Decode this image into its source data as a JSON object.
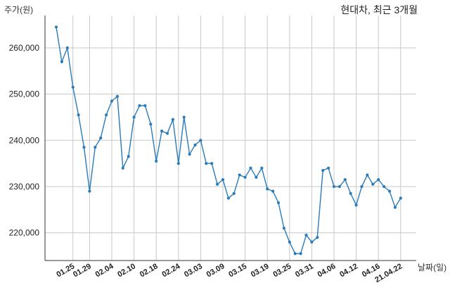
{
  "chart_data": {
    "type": "line",
    "title": "현대차, 최근 3개월",
    "ylabel": "주가(원)",
    "xlabel": "날짜(일)",
    "ylim": [
      214000,
      267000
    ],
    "yticks": [
      220000,
      230000,
      240000,
      250000,
      260000
    ],
    "ytick_labels": [
      "220,000",
      "230,000",
      "240,000",
      "250,000",
      "260,000"
    ],
    "xtick_labels": [
      "01.25",
      "01.29",
      "02.04",
      "02.10",
      "02.18",
      "02.24",
      "03.03",
      "03.09",
      "03.15",
      "03.19",
      "03.25",
      "03.31",
      "04.06",
      "04.12",
      "04.16",
      "21.04.22"
    ],
    "xtick_index": [
      3,
      6,
      10,
      14,
      18,
      22,
      26,
      30,
      34,
      38,
      42,
      46,
      50,
      54,
      58,
      62
    ],
    "grid": true,
    "color": "#2b7bb9",
    "series": [
      {
        "values": [
          264500,
          257000,
          260000,
          251500,
          245500,
          238500,
          229000,
          238500,
          240500,
          245500,
          248500,
          249500,
          234000,
          236500,
          245000,
          247500,
          247500,
          243500,
          235500,
          242000,
          241500,
          244500,
          235000,
          245000,
          237000,
          239000,
          240000,
          235000,
          235000,
          230500,
          231500,
          227500,
          228500,
          232500,
          232000,
          234000,
          232000,
          234000,
          229500,
          229000,
          226500,
          221000,
          218000,
          215500,
          215500,
          219500,
          218000,
          219000,
          233500,
          234000,
          230000,
          230000,
          231500,
          228500,
          226000,
          230000,
          232500,
          230500,
          231500,
          230000,
          229000,
          225500,
          227500
        ]
      }
    ]
  }
}
